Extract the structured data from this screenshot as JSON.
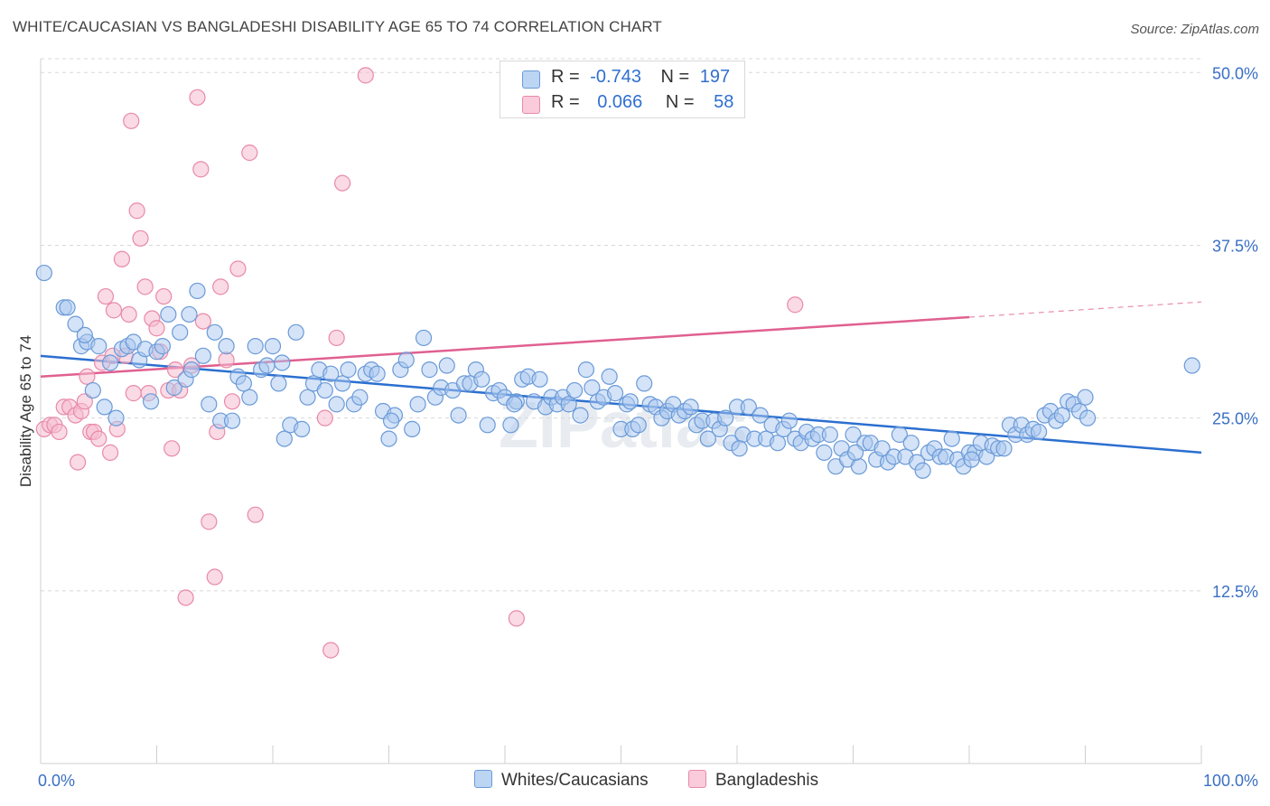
{
  "title": "WHITE/CAUCASIAN VS BANGLADESHI DISABILITY AGE 65 TO 74 CORRELATION CHART",
  "source": "Source: ZipAtlas.com",
  "watermark": "ZIPatlas",
  "colors": {
    "blue_fill": "#aac8f0",
    "blue_stroke": "#6a9ad8",
    "blue_line": "#2b6fd0",
    "pink_fill": "#f6bcd0",
    "pink_stroke": "#e88aa8",
    "pink_line": "#e06090",
    "grid": "#d8d8d8",
    "tick_text": "#3a6fc4"
  },
  "legend": {
    "rows": [
      {
        "r_label": "R =",
        "r_value": "-0.743",
        "n_label": "N =",
        "n_value": "197",
        "color": "blue"
      },
      {
        "r_label": "R =",
        "r_value": "0.066",
        "n_label": "N =",
        "n_value": "58",
        "color": "pink"
      }
    ]
  },
  "bottom_legend": {
    "series_a": "Whites/Caucasians",
    "series_b": "Bangladeshis"
  },
  "chart_data": {
    "type": "scatter",
    "title": "WHITE/CAUCASIAN VS BANGLADESHI DISABILITY AGE 65 TO 74 CORRELATION CHART",
    "xlabel": "",
    "ylabel": "Disability Age 65 to 74",
    "xlim": [
      0,
      100
    ],
    "ylim": [
      0,
      51
    ],
    "x_tick_labels": [
      "0.0%",
      "100.0%"
    ],
    "y_ticks": [
      12.5,
      25.0,
      37.5,
      50.0
    ],
    "y_tick_labels": [
      "12.5%",
      "25.0%",
      "37.5%",
      "50.0%"
    ],
    "legend_position": "top-center",
    "grid": true,
    "series": [
      {
        "name": "Whites/Caucasians",
        "color": "blue",
        "trend": {
          "x": [
            0,
            100
          ],
          "y": [
            29.5,
            22.5
          ]
        },
        "points": [
          [
            0.3,
            35.5
          ],
          [
            2,
            33
          ],
          [
            2.3,
            33
          ],
          [
            3,
            31.8
          ],
          [
            3.5,
            30.2
          ],
          [
            4,
            30.5
          ],
          [
            4.5,
            27
          ],
          [
            5,
            30.2
          ],
          [
            5.5,
            25.8
          ],
          [
            6,
            29
          ],
          [
            6.5,
            25
          ],
          [
            7,
            30
          ],
          [
            7.5,
            30.2
          ],
          [
            8,
            30.5
          ],
          [
            8.5,
            29.2
          ],
          [
            9,
            30
          ],
          [
            9.5,
            26.2
          ],
          [
            10,
            29.8
          ],
          [
            10.5,
            30.2
          ],
          [
            11,
            32.5
          ],
          [
            11.5,
            27.2
          ],
          [
            12,
            31.2
          ],
          [
            12.5,
            27.8
          ],
          [
            13,
            28.5
          ],
          [
            13.5,
            34.2
          ],
          [
            14,
            29.5
          ],
          [
            14.5,
            26
          ],
          [
            15,
            31.2
          ],
          [
            15.5,
            24.8
          ],
          [
            16,
            30.2
          ],
          [
            16.5,
            24.8
          ],
          [
            17,
            28
          ],
          [
            17.5,
            27.5
          ],
          [
            18,
            26.5
          ],
          [
            18.5,
            30.2
          ],
          [
            19,
            28.5
          ],
          [
            19.5,
            28.8
          ],
          [
            20,
            30.2
          ],
          [
            20.5,
            27.5
          ],
          [
            21,
            23.5
          ],
          [
            21.5,
            24.5
          ],
          [
            22,
            31.2
          ],
          [
            22.5,
            24.2
          ],
          [
            23,
            26.5
          ],
          [
            23.5,
            27.5
          ],
          [
            24,
            28.5
          ],
          [
            24.5,
            27
          ],
          [
            25,
            28.2
          ],
          [
            25.5,
            26
          ],
          [
            26,
            27.5
          ],
          [
            26.5,
            28.5
          ],
          [
            27,
            26
          ],
          [
            27.5,
            26.5
          ],
          [
            28,
            28.2
          ],
          [
            28.5,
            28.5
          ],
          [
            29,
            28.2
          ],
          [
            29.5,
            25.5
          ],
          [
            30,
            23.5
          ],
          [
            30.5,
            25.2
          ],
          [
            31,
            28.5
          ],
          [
            31.5,
            29.2
          ],
          [
            32,
            24.2
          ],
          [
            32.5,
            26
          ],
          [
            33,
            30.8
          ],
          [
            33.5,
            28.5
          ],
          [
            34,
            26.5
          ],
          [
            34.5,
            27.2
          ],
          [
            35,
            28.8
          ],
          [
            35.5,
            27
          ],
          [
            36,
            25.2
          ],
          [
            36.5,
            27.5
          ],
          [
            37,
            27.5
          ],
          [
            37.5,
            28.5
          ],
          [
            38,
            27.8
          ],
          [
            38.5,
            24.5
          ],
          [
            39,
            26.8
          ],
          [
            39.5,
            27
          ],
          [
            40,
            26.5
          ],
          [
            40.5,
            24.5
          ],
          [
            41,
            26.2
          ],
          [
            41.5,
            27.8
          ],
          [
            42,
            28
          ],
          [
            42.5,
            26.2
          ],
          [
            43,
            27.8
          ],
          [
            43.5,
            25.8
          ],
          [
            44,
            26.5
          ],
          [
            44.5,
            26
          ],
          [
            45,
            26.5
          ],
          [
            45.5,
            26
          ],
          [
            46,
            27
          ],
          [
            46.5,
            25.2
          ],
          [
            47,
            28.5
          ],
          [
            47.5,
            27.2
          ],
          [
            48,
            26.2
          ],
          [
            48.5,
            26.5
          ],
          [
            49,
            28
          ],
          [
            49.5,
            26.8
          ],
          [
            50,
            24.2
          ],
          [
            50.5,
            26
          ],
          [
            51,
            24.2
          ],
          [
            51.5,
            24.5
          ],
          [
            52,
            27.5
          ],
          [
            52.5,
            26
          ],
          [
            53,
            25.8
          ],
          [
            53.5,
            25
          ],
          [
            54,
            25.5
          ],
          [
            54.5,
            26
          ],
          [
            55,
            25.2
          ],
          [
            55.5,
            25.5
          ],
          [
            56,
            25.8
          ],
          [
            56.5,
            24.5
          ],
          [
            57,
            24.8
          ],
          [
            57.5,
            23.5
          ],
          [
            58,
            24.8
          ],
          [
            58.5,
            24.2
          ],
          [
            59,
            25
          ],
          [
            59.5,
            23.2
          ],
          [
            60,
            25.8
          ],
          [
            60.5,
            23.8
          ],
          [
            61,
            25.8
          ],
          [
            61.5,
            23.5
          ],
          [
            62,
            25.2
          ],
          [
            62.5,
            23.5
          ],
          [
            63,
            24.5
          ],
          [
            63.5,
            23.2
          ],
          [
            64,
            24.2
          ],
          [
            64.5,
            24.8
          ],
          [
            65,
            23.5
          ],
          [
            65.5,
            23.2
          ],
          [
            66,
            24
          ],
          [
            66.5,
            23.5
          ],
          [
            67,
            23.8
          ],
          [
            67.5,
            22.5
          ],
          [
            68,
            23.8
          ],
          [
            68.5,
            21.5
          ],
          [
            69,
            22.8
          ],
          [
            69.5,
            22
          ],
          [
            70,
            23.8
          ],
          [
            70.5,
            21.5
          ],
          [
            71,
            23.2
          ],
          [
            71.5,
            23.2
          ],
          [
            72,
            22
          ],
          [
            72.5,
            22.8
          ],
          [
            73,
            21.8
          ],
          [
            73.5,
            22.2
          ],
          [
            74,
            23.8
          ],
          [
            74.5,
            22.2
          ],
          [
            75,
            23.2
          ],
          [
            75.5,
            21.8
          ],
          [
            76,
            21.2
          ],
          [
            76.5,
            22.5
          ],
          [
            77,
            22.8
          ],
          [
            77.5,
            22.2
          ],
          [
            78,
            22.2
          ],
          [
            78.5,
            23.5
          ],
          [
            79,
            22
          ],
          [
            79.5,
            21.5
          ],
          [
            80,
            22.5
          ],
          [
            80.5,
            22.5
          ],
          [
            81,
            23.2
          ],
          [
            81.5,
            22.2
          ],
          [
            82,
            23
          ],
          [
            82.5,
            22.8
          ],
          [
            83,
            22.8
          ],
          [
            83.5,
            24.5
          ],
          [
            84,
            23.8
          ],
          [
            84.5,
            24.5
          ],
          [
            85,
            23.8
          ],
          [
            85.5,
            24.2
          ],
          [
            86,
            24
          ],
          [
            86.5,
            25.2
          ],
          [
            87,
            25.5
          ],
          [
            87.5,
            24.8
          ],
          [
            88,
            25.2
          ],
          [
            88.5,
            26.2
          ],
          [
            89,
            26
          ],
          [
            89.5,
            25.5
          ],
          [
            90,
            26.5
          ],
          [
            99.2,
            28.8
          ],
          [
            3.8,
            31
          ],
          [
            12.8,
            32.5
          ],
          [
            20.8,
            29
          ],
          [
            30.2,
            24.8
          ],
          [
            40.8,
            26
          ],
          [
            50.8,
            26.2
          ],
          [
            60.2,
            22.8
          ],
          [
            70.2,
            22.5
          ],
          [
            80.2,
            22
          ],
          [
            90.2,
            25
          ]
        ]
      },
      {
        "name": "Bangladeshis",
        "color": "pink",
        "trend": {
          "x": [
            0,
            80
          ],
          "y": [
            28.0,
            32.3
          ]
        },
        "trend_dashed": {
          "x": [
            80,
            100
          ],
          "y": [
            32.3,
            33.4
          ]
        },
        "points": [
          [
            0.3,
            24.2
          ],
          [
            0.8,
            24.5
          ],
          [
            1.2,
            24.5
          ],
          [
            1.6,
            24
          ],
          [
            2,
            25.8
          ],
          [
            2.5,
            25.8
          ],
          [
            3,
            25.2
          ],
          [
            3.2,
            21.8
          ],
          [
            3.5,
            25.5
          ],
          [
            3.8,
            26.2
          ],
          [
            4,
            28
          ],
          [
            4.3,
            24
          ],
          [
            4.6,
            24
          ],
          [
            5,
            23.5
          ],
          [
            5.3,
            29
          ],
          [
            5.6,
            33.8
          ],
          [
            6,
            22.5
          ],
          [
            6.3,
            32.8
          ],
          [
            6.6,
            24.2
          ],
          [
            7,
            36.5
          ],
          [
            7.3,
            29.5
          ],
          [
            7.6,
            32.5
          ],
          [
            7.8,
            46.5
          ],
          [
            8,
            26.8
          ],
          [
            8.3,
            40
          ],
          [
            8.6,
            38
          ],
          [
            9,
            34.5
          ],
          [
            9.3,
            26.8
          ],
          [
            9.6,
            32.2
          ],
          [
            10,
            31.5
          ],
          [
            10.3,
            29.8
          ],
          [
            10.6,
            33.8
          ],
          [
            11,
            27
          ],
          [
            11.3,
            22.8
          ],
          [
            11.6,
            28.5
          ],
          [
            12,
            27
          ],
          [
            12.5,
            12
          ],
          [
            13,
            28.8
          ],
          [
            13.5,
            48.2
          ],
          [
            13.8,
            43
          ],
          [
            14,
            32
          ],
          [
            14.5,
            17.5
          ],
          [
            15,
            13.5
          ],
          [
            15.5,
            34.5
          ],
          [
            16,
            29.2
          ],
          [
            16.5,
            26.2
          ],
          [
            17,
            35.8
          ],
          [
            18,
            44.2
          ],
          [
            18.5,
            18
          ],
          [
            24.5,
            25
          ],
          [
            25.5,
            30.8
          ],
          [
            26,
            42
          ],
          [
            25,
            8.2
          ],
          [
            28,
            49.8
          ],
          [
            41,
            10.5
          ],
          [
            65,
            33.2
          ],
          [
            15.2,
            24
          ],
          [
            6.2,
            29.5
          ]
        ]
      }
    ]
  }
}
